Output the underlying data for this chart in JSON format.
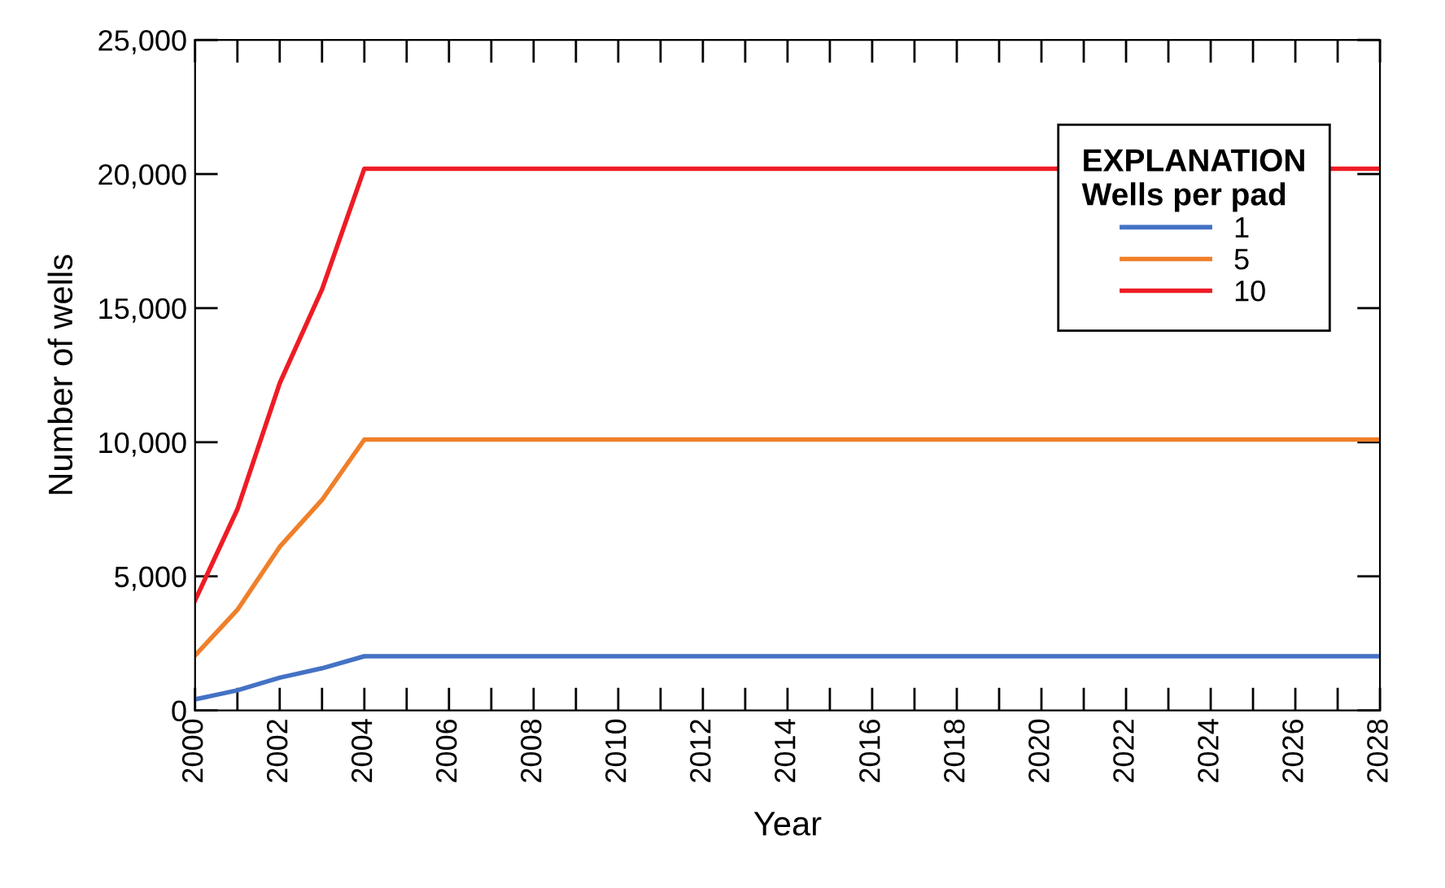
{
  "chart_data": {
    "type": "line",
    "xlabel": "Year",
    "ylabel": "Number of wells",
    "legend_title": "EXPLANATION\nWells per pad",
    "series": [
      {
        "name": "1",
        "color": "#4472c4",
        "x": [
          2000,
          2001,
          2002,
          2003,
          2004,
          2028
        ],
        "values": [
          410,
          750,
          1220,
          1570,
          2020,
          2020
        ]
      },
      {
        "name": "5",
        "color": "#f07f29",
        "x": [
          2000,
          2001,
          2002,
          2003,
          2004,
          2028
        ],
        "values": [
          2050,
          3750,
          6100,
          7850,
          10100,
          10100
        ]
      },
      {
        "name": "10",
        "color": "#ee1c25",
        "x": [
          2000,
          2001,
          2002,
          2003,
          2004,
          2028
        ],
        "values": [
          4100,
          7500,
          12200,
          15700,
          20200,
          20200
        ]
      }
    ],
    "xlim": [
      2000,
      2028
    ],
    "xticks": [
      2000,
      {
        "value": 2001,
        "label": null
      },
      2002,
      {
        "value": 2003,
        "label": null
      },
      2004,
      {
        "value": 2005,
        "label": null
      },
      2006,
      {
        "value": 2007,
        "label": null
      },
      2008,
      {
        "value": 2009,
        "label": null
      },
      2010,
      {
        "value": 2011,
        "label": null
      },
      2012,
      {
        "value": 2013,
        "label": null
      },
      2014,
      {
        "value": 2015,
        "label": null
      },
      2016,
      {
        "value": 2017,
        "label": null
      },
      2018,
      {
        "value": 2019,
        "label": null
      },
      2020,
      {
        "value": 2021,
        "label": null
      },
      2022,
      {
        "value": 2023,
        "label": null
      },
      2024,
      {
        "value": 2025,
        "label": null
      },
      2026,
      {
        "value": 2027,
        "label": null
      },
      2028
    ],
    "ylim": [
      0,
      25000
    ],
    "yticks": [
      {
        "value": 0,
        "label": "0"
      },
      {
        "value": 5000,
        "label": "5,000"
      },
      {
        "value": 10000,
        "label": "10,000"
      },
      {
        "value": 15000,
        "label": "15,000"
      },
      {
        "value": 20000,
        "label": "20,000"
      },
      {
        "value": 25000,
        "label": "25,000"
      }
    ],
    "grid": false,
    "legend": "right",
    "marker": "none",
    "line_style": "solid"
  }
}
